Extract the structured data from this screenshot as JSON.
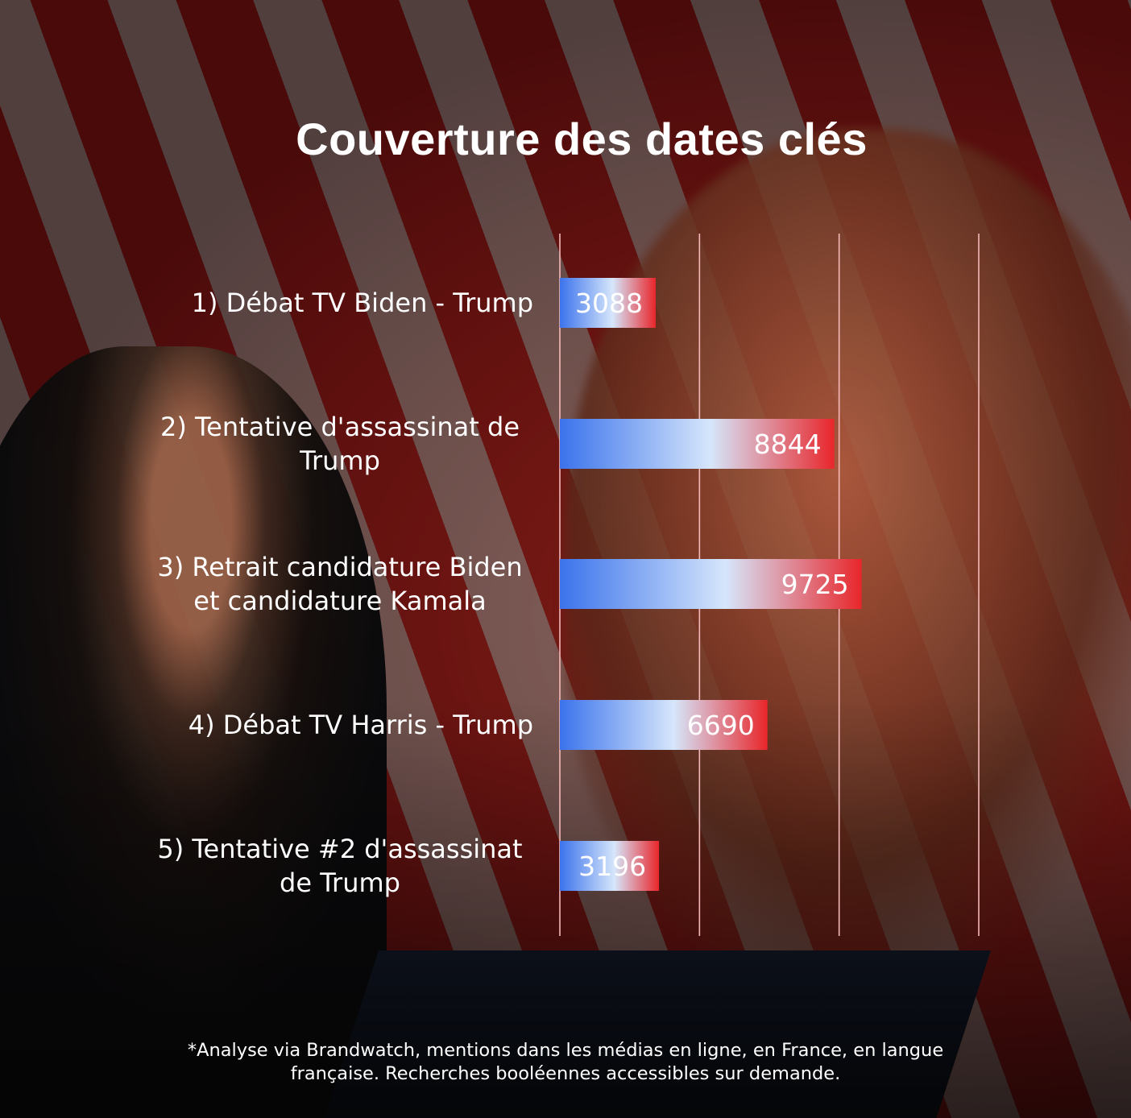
{
  "chart_data": {
    "type": "bar",
    "orientation": "horizontal",
    "title": "Couverture des dates clés",
    "categories": [
      "1) Débat TV Biden - Trump",
      "2) Tentative d'assassinat de Trump",
      "3) Retrait candidature Biden et candidature Kamala",
      "4) Débat TV Harris - Trump",
      "5) Tentative #2 d'assassinat de Trump"
    ],
    "category_lines": [
      [
        "1) Débat TV Biden - Trump"
      ],
      [
        "2) Tentative d'assassinat de",
        "Trump"
      ],
      [
        "3) Retrait candidature Biden",
        "et candidature Kamala"
      ],
      [
        "4) Débat TV Harris - Trump"
      ],
      [
        "5) Tentative #2 d'assassinat",
        "de Trump"
      ]
    ],
    "values": [
      3088,
      8844,
      9725,
      6690,
      3196
    ],
    "value_labels": [
      "3088",
      "8844",
      "9725",
      "6690",
      "3196"
    ],
    "xlim": [
      0,
      13500
    ],
    "grid": true,
    "gridline_values": [
      0,
      4500,
      9000,
      13500
    ],
    "bar_gradient": {
      "start": "#3b73ec",
      "middle": "#d6e6fb",
      "end": "#e8262b"
    },
    "gridline_color": "#f5b9b9"
  },
  "footnote": "*Analyse via Brandwatch, mentions dans les médias en ligne, en France, en langue française. Recherches booléennes accessibles sur demande."
}
